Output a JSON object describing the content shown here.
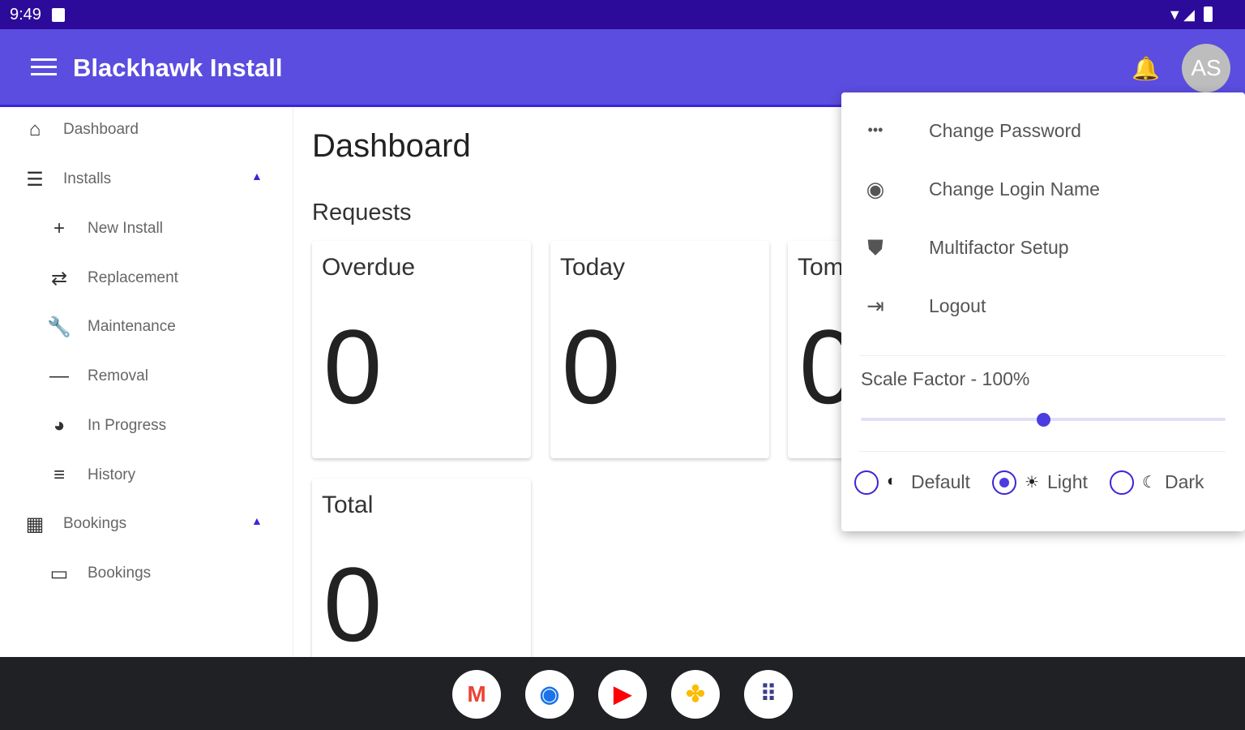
{
  "status_bar": {
    "time": "9:49"
  },
  "app_bar": {
    "title": "Blackhawk Install",
    "avatar_initials": "AS"
  },
  "sidebar": {
    "items": [
      {
        "label": "Dashboard",
        "icon": "home-icon",
        "glyph": "⌂"
      },
      {
        "label": "Installs",
        "icon": "checklist-icon",
        "glyph": "☰",
        "expanded": true
      },
      {
        "label": "New Install",
        "icon": "plus-icon",
        "glyph": "+"
      },
      {
        "label": "Replacement",
        "icon": "swap-icon",
        "glyph": "⇄"
      },
      {
        "label": "Maintenance",
        "icon": "wrench-icon",
        "glyph": "🔧"
      },
      {
        "label": "Removal",
        "icon": "minus-icon",
        "glyph": "—"
      },
      {
        "label": "In Progress",
        "icon": "pie-icon",
        "glyph": "◕"
      },
      {
        "label": "History",
        "icon": "history-list-icon",
        "glyph": "≡"
      },
      {
        "label": "Bookings",
        "icon": "calendar-icon",
        "glyph": "▦",
        "expanded": true
      },
      {
        "label": "Bookings",
        "icon": "calendar-icon",
        "glyph": "▭"
      }
    ]
  },
  "main": {
    "title": "Dashboard",
    "section": "Requests",
    "cards": [
      {
        "title": "Overdue",
        "value": "0"
      },
      {
        "title": "Today",
        "value": "0"
      },
      {
        "title": "Tom",
        "value": "0"
      },
      {
        "title": "Total",
        "value": "0"
      }
    ]
  },
  "user_menu": {
    "items": [
      {
        "label": "Change Password",
        "icon": "password-icon",
        "glyph": "•••"
      },
      {
        "label": "Change Login Name",
        "icon": "account-circle-icon",
        "glyph": "◉"
      },
      {
        "label": "Multifactor Setup",
        "icon": "shield-icon",
        "glyph": "⛊"
      },
      {
        "label": "Logout",
        "icon": "logout-icon",
        "glyph": "⇥"
      }
    ],
    "scale_label": "Scale Factor - 100%",
    "scale_value_fraction": 0.5,
    "themes": [
      {
        "label": "Default",
        "glyph": "◐",
        "selected": false
      },
      {
        "label": "Light",
        "glyph": "☀",
        "selected": true
      },
      {
        "label": "Dark",
        "glyph": "☾",
        "selected": false
      }
    ]
  },
  "colors": {
    "primary": "#5b4ddf",
    "status_bar": "#2c0a9a",
    "accent": "#3d25d8"
  },
  "dock": [
    {
      "name": "gmail",
      "glyph": "M",
      "color": "#ea4335"
    },
    {
      "name": "chrome",
      "glyph": "◉",
      "color": "#1a73e8"
    },
    {
      "name": "youtube",
      "glyph": "▶",
      "color": "#ff0000"
    },
    {
      "name": "photos",
      "glyph": "✤",
      "color": "#fbbc04"
    },
    {
      "name": "app-drawer",
      "glyph": "⠿",
      "color": "#3c3c8c"
    }
  ]
}
